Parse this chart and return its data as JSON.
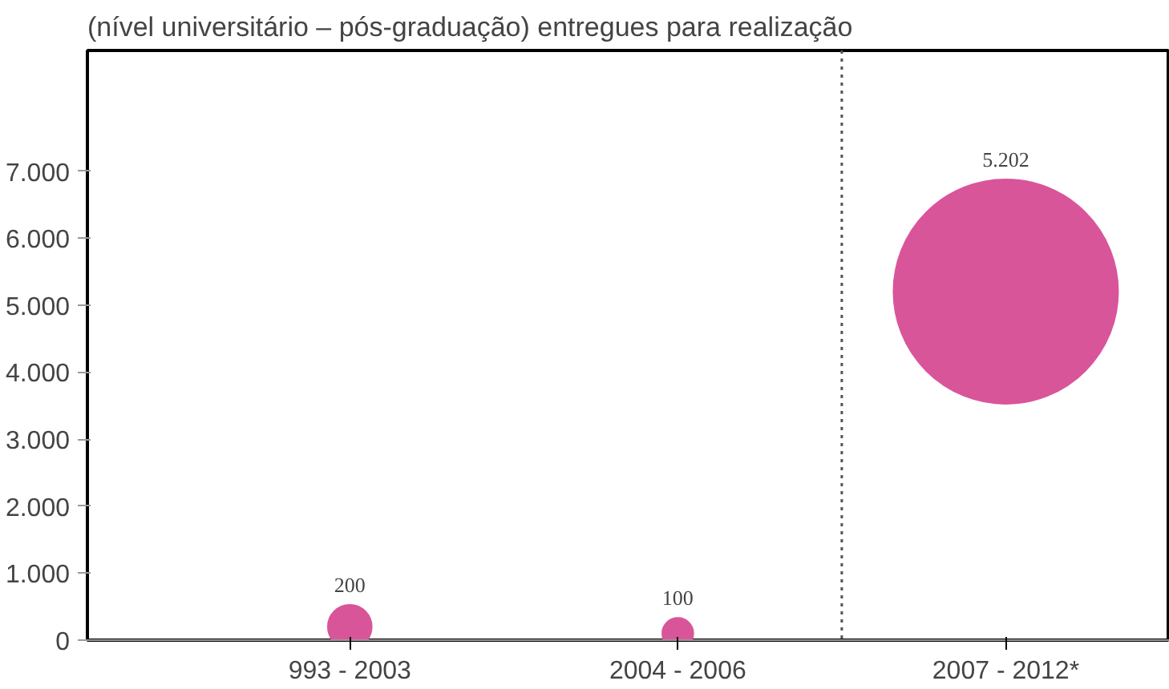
{
  "chart_data": {
    "type": "bubble",
    "title": "(nível universitário – pós-graduação) entregues para realização",
    "categories": [
      "993 - 2003",
      "2004 - 2006",
      "2007 - 2012*"
    ],
    "series": [
      {
        "color": "#d9559a",
        "values": [
          200,
          100,
          5202
        ],
        "sizes": [
          0.038,
          0.019,
          1
        ]
      }
    ],
    "value_labels": [
      "200",
      "100",
      "5.202"
    ],
    "ylim": [
      0,
      8800
    ],
    "yticks": [
      {
        "value": 0,
        "label": "0"
      },
      {
        "value": 1000,
        "label": "1.000"
      },
      {
        "value": 2000,
        "label": "2.000"
      },
      {
        "value": 3000,
        "label": "3.000"
      },
      {
        "value": 4000,
        "label": "4.000"
      },
      {
        "value": 5000,
        "label": "5.000"
      },
      {
        "value": 6000,
        "label": "6.000"
      },
      {
        "value": 7000,
        "label": "7.000"
      }
    ],
    "grid": false
  }
}
